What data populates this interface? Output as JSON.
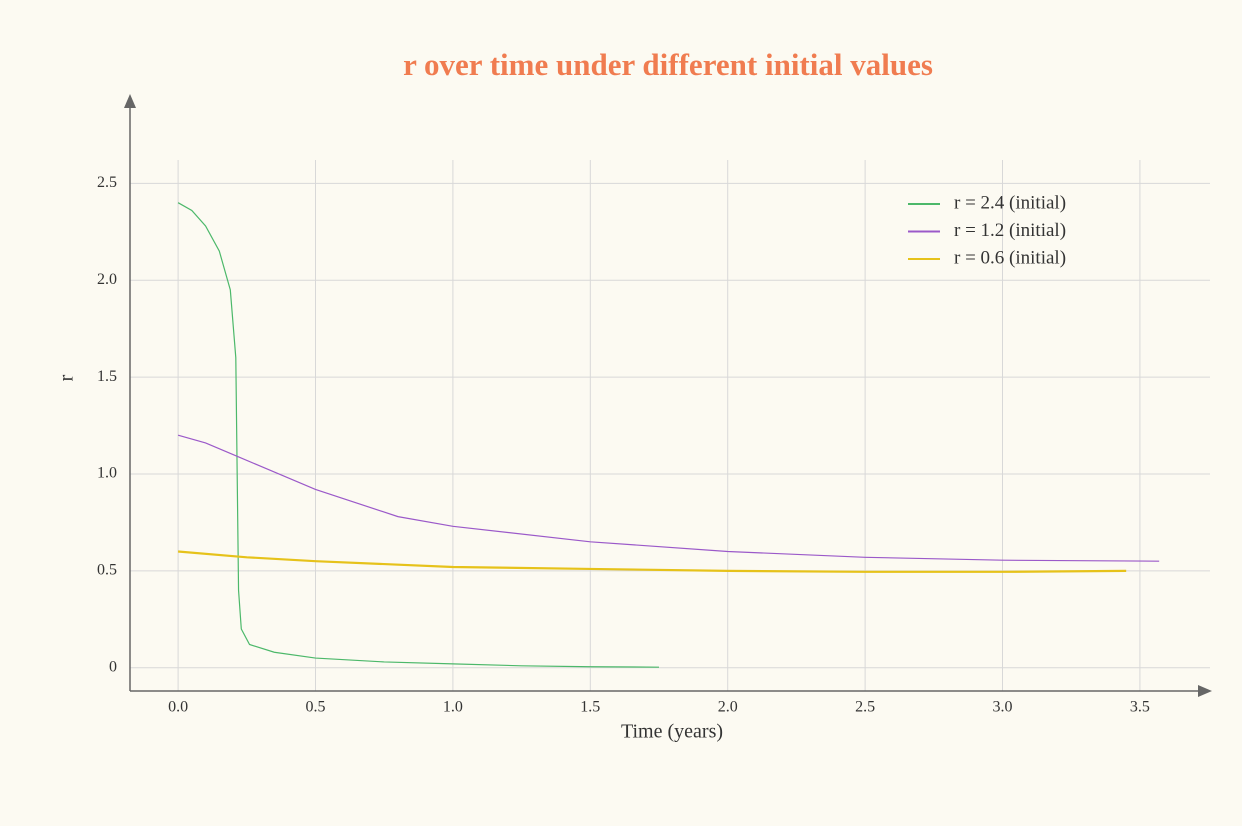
{
  "chart_data": {
    "type": "line",
    "title": "r over time under different initial values",
    "xlabel": "Time (years)",
    "ylabel": "r",
    "xlim": [
      -0.175,
      3.755
    ],
    "ylim": [
      -0.12,
      2.93
    ],
    "xticks": [
      {
        "value": 0,
        "label": "0.0"
      },
      0.5,
      {
        "value": 1,
        "label": "1.0"
      },
      1.5,
      {
        "value": 2,
        "label": "2.0"
      },
      2.5,
      {
        "value": 3,
        "label": "3.0"
      },
      3.5
    ],
    "yticks": [
      0,
      0.5,
      {
        "value": 1,
        "label": "1.0"
      },
      1.5,
      {
        "value": 2,
        "label": "2.0"
      },
      2.5
    ],
    "grid": true,
    "legend": "upper right",
    "series": [
      {
        "name": "r = 2.4 (initial)",
        "color": "#4cb86a",
        "x": [
          0,
          0.05,
          0.1,
          0.15,
          0.19,
          0.21,
          0.215,
          0.22,
          0.23,
          0.26,
          0.35,
          0.5,
          0.75,
          1.0,
          1.25,
          1.5,
          1.75
        ],
        "values": [
          2.4,
          2.36,
          2.28,
          2.15,
          1.95,
          1.6,
          1.0,
          0.4,
          0.2,
          0.12,
          0.08,
          0.05,
          0.03,
          0.02,
          0.01,
          0.005,
          0.003
        ]
      },
      {
        "name": "r = 1.2 (initial)",
        "color": "#9b59c9",
        "x": [
          0,
          0.1,
          0.2,
          0.3,
          0.5,
          0.8,
          1.0,
          1.5,
          2.0,
          2.5,
          3.0,
          3.57
        ],
        "values": [
          1.2,
          1.16,
          1.1,
          1.04,
          0.92,
          0.78,
          0.73,
          0.65,
          0.6,
          0.57,
          0.555,
          0.55
        ]
      },
      {
        "name": "r = 0.6 (initial)",
        "color": "#e6c21a",
        "x": [
          0,
          0.25,
          0.5,
          1.0,
          1.5,
          2.0,
          2.5,
          3.0,
          3.45
        ],
        "values": [
          0.6,
          0.57,
          0.55,
          0.52,
          0.51,
          0.5,
          0.495,
          0.495,
          0.5
        ]
      }
    ]
  }
}
